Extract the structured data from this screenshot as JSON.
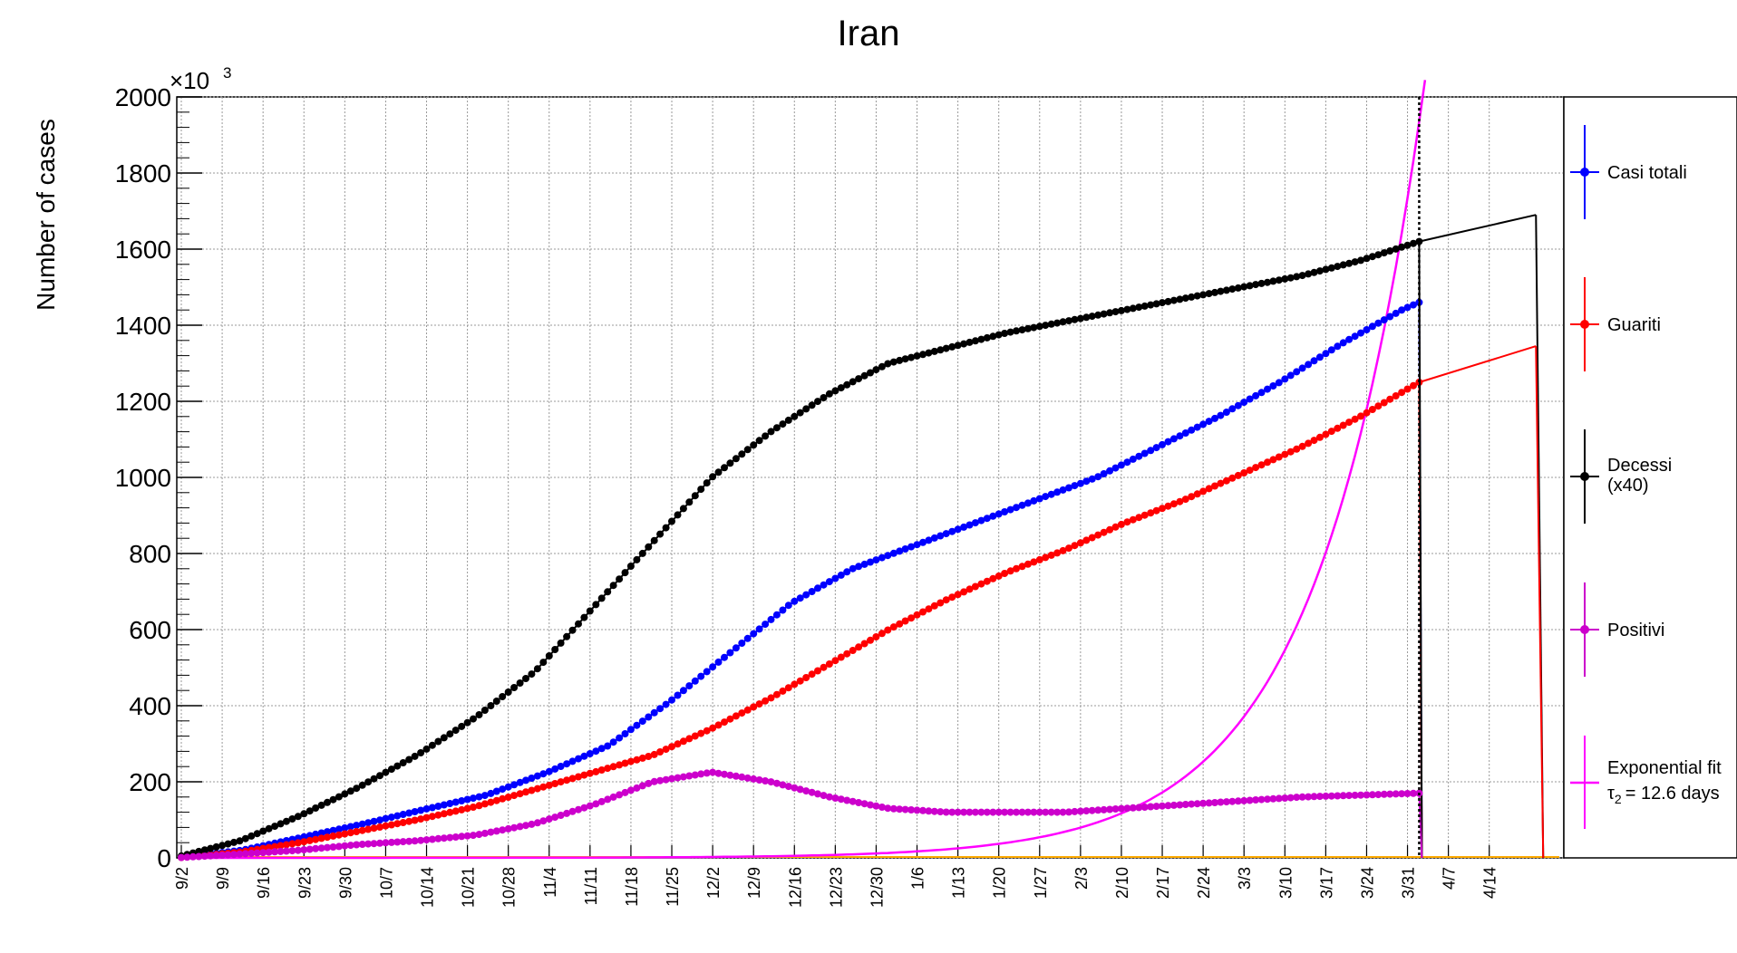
{
  "chart_data": {
    "type": "line",
    "title": "Iran",
    "ylabel": "Number of cases",
    "y_multiplier_label": "×10",
    "y_multiplier_exp": "3",
    "ylim": [
      0,
      2000
    ],
    "yticks": [
      0,
      200,
      400,
      600,
      800,
      1000,
      1200,
      1400,
      1600,
      1800,
      2000
    ],
    "x_range_days": [
      0,
      236
    ],
    "x_start_date": "9/2",
    "xtick_labels": [
      "9/2",
      "9/9",
      "9/16",
      "9/23",
      "9/30",
      "10/7",
      "10/14",
      "10/21",
      "10/28",
      "11/4",
      "11/11",
      "11/18",
      "11/25",
      "12/2",
      "12/9",
      "12/16",
      "12/23",
      "12/30",
      "1/6",
      "1/13",
      "1/20",
      "1/27",
      "2/3",
      "2/10",
      "2/17",
      "2/24",
      "3/3",
      "3/10",
      "3/17",
      "3/24",
      "3/31",
      "4/7",
      "4/14"
    ],
    "grid": true,
    "vertical_marker_day": 212,
    "legend_position": "right",
    "series": [
      {
        "name": "Casi totali",
        "color": "#0000ff",
        "points": [
          [
            0,
            2
          ],
          [
            14,
            20
          ],
          [
            28,
            55
          ],
          [
            42,
            90
          ],
          [
            56,
            128
          ],
          [
            70,
            165
          ],
          [
            84,
            225
          ],
          [
            98,
            295
          ],
          [
            112,
            410
          ],
          [
            126,
            540
          ],
          [
            140,
            670
          ],
          [
            154,
            760
          ],
          [
            168,
            820
          ],
          [
            182,
            880
          ],
          [
            196,
            940
          ],
          [
            210,
            1000
          ],
          [
            224,
            1080
          ],
          [
            238,
            1160
          ],
          [
            252,
            1250
          ],
          [
            266,
            1350
          ],
          [
            280,
            1440
          ],
          [
            284,
            1460
          ]
        ],
        "scale_note": ""
      },
      {
        "name": "Guariti",
        "color": "#ff0000",
        "points": [
          [
            0,
            1
          ],
          [
            14,
            15
          ],
          [
            28,
            40
          ],
          [
            42,
            70
          ],
          [
            56,
            100
          ],
          [
            70,
            135
          ],
          [
            84,
            180
          ],
          [
            98,
            225
          ],
          [
            112,
            270
          ],
          [
            126,
            340
          ],
          [
            140,
            420
          ],
          [
            154,
            510
          ],
          [
            168,
            600
          ],
          [
            182,
            680
          ],
          [
            196,
            750
          ],
          [
            210,
            810
          ],
          [
            224,
            880
          ],
          [
            238,
            940
          ],
          [
            252,
            1010
          ],
          [
            266,
            1080
          ],
          [
            280,
            1160
          ],
          [
            294,
            1250
          ]
        ],
        "scale_note": ""
      },
      {
        "name": "Decessi",
        "name_line2": "(x40)",
        "color": "#000000",
        "points": [
          [
            0,
            5
          ],
          [
            14,
            45
          ],
          [
            28,
            110
          ],
          [
            42,
            185
          ],
          [
            56,
            270
          ],
          [
            70,
            370
          ],
          [
            84,
            490
          ],
          [
            98,
            660
          ],
          [
            112,
            830
          ],
          [
            126,
            1000
          ],
          [
            140,
            1120
          ],
          [
            154,
            1220
          ],
          [
            168,
            1300
          ],
          [
            182,
            1340
          ],
          [
            196,
            1380
          ],
          [
            210,
            1410
          ],
          [
            224,
            1440
          ],
          [
            238,
            1470
          ],
          [
            252,
            1500
          ],
          [
            266,
            1530
          ],
          [
            280,
            1570
          ],
          [
            294,
            1620
          ]
        ],
        "scale_note": "x40"
      },
      {
        "name": "Positivi",
        "color": "#cc00cc",
        "points": [
          [
            0,
            1
          ],
          [
            14,
            10
          ],
          [
            28,
            20
          ],
          [
            42,
            35
          ],
          [
            56,
            45
          ],
          [
            70,
            60
          ],
          [
            84,
            90
          ],
          [
            98,
            140
          ],
          [
            112,
            200
          ],
          [
            126,
            225
          ],
          [
            140,
            200
          ],
          [
            154,
            160
          ],
          [
            168,
            130
          ],
          [
            182,
            120
          ],
          [
            196,
            120
          ],
          [
            210,
            120
          ],
          [
            224,
            130
          ],
          [
            238,
            140
          ],
          [
            252,
            150
          ],
          [
            266,
            160
          ],
          [
            280,
            165
          ],
          [
            294,
            170
          ]
        ],
        "scale_note": ""
      }
    ],
    "fit": {
      "name": "Exponential fit",
      "label_line2": "τ₂ = 12.6 days",
      "tau_prefix": "τ",
      "tau_sub": "2",
      "tau_value": "= 12.6 days",
      "color": "#ff00ff",
      "doubling_days": 12.6,
      "value_at_day_200": 1000
    },
    "extension_lines": [
      {
        "name": "black-extension",
        "color": "#000000",
        "from": [
          212,
          1620
        ],
        "to": [
          232,
          1690
        ]
      },
      {
        "name": "red-extension",
        "color": "#ff0000",
        "from": [
          212,
          1250
        ],
        "to": [
          232,
          1345
        ]
      }
    ],
    "baseline_color": "#ffaa00"
  }
}
